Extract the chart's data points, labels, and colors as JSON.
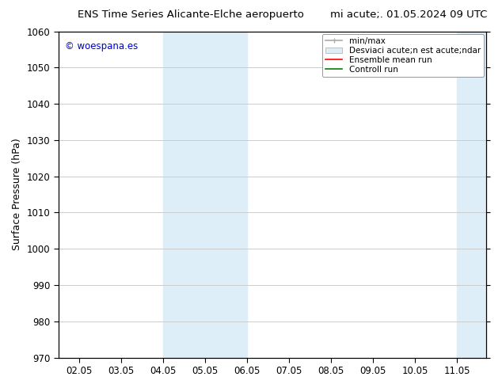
{
  "title_left": "ENS Time Series Alicante-Elche aeropuerto",
  "title_right": "mi acute;. 01.05.2024 09 UTC",
  "ylabel": "Surface Pressure (hPa)",
  "xlim_dates": [
    "02.05",
    "03.05",
    "04.05",
    "05.05",
    "06.05",
    "07.05",
    "08.05",
    "09.05",
    "10.05",
    "11.05"
  ],
  "ylim": [
    970,
    1060
  ],
  "yticks": [
    970,
    980,
    990,
    1000,
    1010,
    1020,
    1030,
    1040,
    1050,
    1060
  ],
  "bg_color": "#ffffff",
  "shade_color": "#ddeef9",
  "watermark_text": "© woespana.es",
  "watermark_color": "#0000cc",
  "grid_color": "#cccccc",
  "legend_labels": [
    "min/max",
    "Desviaci acute;n est acute;ndar",
    "Ensemble mean run",
    "Controll run"
  ],
  "legend_colors": [
    "#aaaaaa",
    "#ddeef9",
    "#ff0000",
    "#008000"
  ]
}
